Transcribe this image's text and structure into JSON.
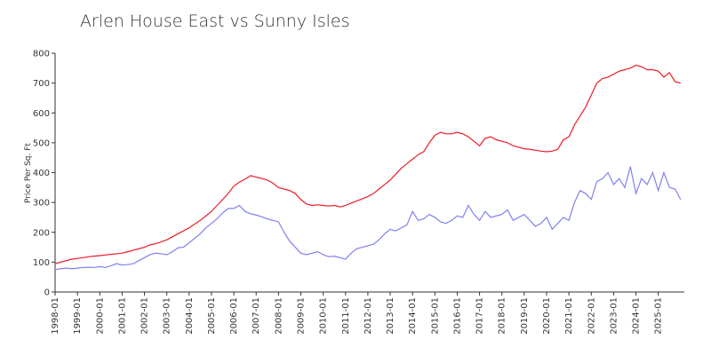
{
  "chart_data": {
    "type": "line",
    "title": "Arlen House East vs Sunny Isles",
    "y_label": "Price Per Sq. Ft",
    "x": [
      "1998-01",
      "1998-04",
      "1998-07",
      "1998-10",
      "1999-01",
      "1999-04",
      "1999-07",
      "1999-10",
      "2000-01",
      "2000-04",
      "2000-07",
      "2000-10",
      "2001-01",
      "2001-04",
      "2001-07",
      "2001-10",
      "2002-01",
      "2002-04",
      "2002-07",
      "2002-10",
      "2003-01",
      "2003-04",
      "2003-07",
      "2003-10",
      "2004-01",
      "2004-04",
      "2004-07",
      "2004-10",
      "2005-01",
      "2005-04",
      "2005-07",
      "2005-10",
      "2006-01",
      "2006-04",
      "2006-07",
      "2006-10",
      "2007-01",
      "2007-04",
      "2007-07",
      "2007-10",
      "2008-01",
      "2008-04",
      "2008-07",
      "2008-10",
      "2009-01",
      "2009-04",
      "2009-07",
      "2009-10",
      "2010-01",
      "2010-04",
      "2010-07",
      "2010-10",
      "2011-01",
      "2011-04",
      "2011-07",
      "2011-10",
      "2012-01",
      "2012-04",
      "2012-07",
      "2012-10",
      "2013-01",
      "2013-04",
      "2013-07",
      "2013-10",
      "2014-01",
      "2014-04",
      "2014-07",
      "2014-10",
      "2015-01",
      "2015-04",
      "2015-07",
      "2015-10",
      "2016-01",
      "2016-04",
      "2016-07",
      "2016-10",
      "2017-01",
      "2017-04",
      "2017-07",
      "2017-10",
      "2018-01",
      "2018-04",
      "2018-07",
      "2018-10",
      "2019-01",
      "2019-04",
      "2019-07",
      "2019-10",
      "2020-01",
      "2020-04",
      "2020-07",
      "2020-10",
      "2021-01",
      "2021-04",
      "2021-07",
      "2021-10",
      "2022-01",
      "2022-04",
      "2022-07",
      "2022-10",
      "2023-01",
      "2023-04",
      "2023-07",
      "2023-10",
      "2024-01",
      "2024-04",
      "2024-07",
      "2024-10",
      "2025-01",
      "2025-04",
      "2025-07",
      "2025-10",
      "2026-01"
    ],
    "series": [
      {
        "color": "#ee1c25",
        "values": [
          95,
          100,
          105,
          110,
          112,
          115,
          118,
          120,
          122,
          124,
          126,
          128,
          130,
          135,
          140,
          145,
          150,
          158,
          162,
          168,
          175,
          185,
          195,
          205,
          215,
          228,
          240,
          255,
          270,
          290,
          310,
          330,
          355,
          368,
          378,
          390,
          385,
          380,
          375,
          365,
          350,
          345,
          340,
          330,
          310,
          295,
          290,
          292,
          290,
          288,
          290,
          285,
          290,
          298,
          305,
          312,
          320,
          330,
          345,
          360,
          375,
          395,
          415,
          430,
          445,
          460,
          470,
          500,
          525,
          535,
          530,
          530,
          535,
          530,
          520,
          505,
          490,
          515,
          520,
          510,
          505,
          500,
          490,
          485,
          480,
          478,
          475,
          472,
          470,
          472,
          478,
          510,
          520,
          560,
          590,
          620,
          660,
          700,
          715,
          720,
          730,
          740,
          745,
          750,
          760,
          755,
          745,
          745,
          740,
          720,
          735,
          705,
          700
        ]
      },
      {
        "color": "#8080f0",
        "values": [
          75,
          78,
          80,
          78,
          80,
          82,
          83,
          82,
          85,
          82,
          88,
          95,
          90,
          92,
          95,
          105,
          115,
          125,
          130,
          128,
          125,
          135,
          148,
          150,
          165,
          180,
          195,
          215,
          230,
          245,
          265,
          280,
          280,
          290,
          270,
          262,
          258,
          252,
          245,
          240,
          235,
          200,
          170,
          150,
          130,
          125,
          130,
          135,
          125,
          118,
          120,
          115,
          110,
          130,
          145,
          150,
          155,
          160,
          175,
          195,
          210,
          205,
          215,
          225,
          270,
          240,
          245,
          260,
          250,
          235,
          230,
          240,
          255,
          250,
          290,
          260,
          240,
          270,
          250,
          255,
          260,
          275,
          240,
          250,
          260,
          240,
          220,
          230,
          250,
          210,
          230,
          250,
          240,
          300,
          340,
          330,
          310,
          370,
          380,
          400,
          360,
          380,
          350,
          420,
          330,
          380,
          360,
          400,
          340,
          400,
          350,
          345,
          310
        ]
      }
    ],
    "xlim": [
      "1998-01",
      "2026-03"
    ],
    "xticks": [
      "1998-01",
      "1999-01",
      "2000-01",
      "2001-01",
      "2002-01",
      "2003-01",
      "2004-01",
      "2005-01",
      "2006-01",
      "2007-01",
      "2008-01",
      "2009-01",
      "2010-01",
      "2011-01",
      "2012-01",
      "2013-01",
      "2014-01",
      "2015-01",
      "2016-01",
      "2017-01",
      "2018-01",
      "2019-01",
      "2020-01",
      "2021-01",
      "2022-01",
      "2023-01",
      "2024-01",
      "2025-01"
    ],
    "ylim": [
      0,
      800
    ],
    "yticks": [
      0,
      100,
      200,
      300,
      400,
      500,
      600,
      700,
      800
    ]
  }
}
